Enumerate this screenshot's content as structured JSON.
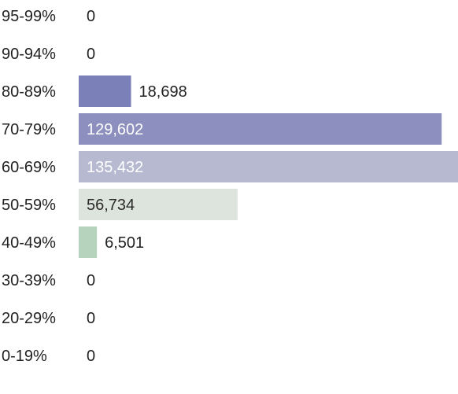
{
  "chart_data": {
    "type": "bar",
    "orientation": "horizontal",
    "categories": [
      "95-99%",
      "90-94%",
      "80-89%",
      "70-79%",
      "60-69%",
      "50-59%",
      "40-49%",
      "30-39%",
      "20-29%",
      "0-19%"
    ],
    "values": [
      0,
      0,
      18698,
      129602,
      135432,
      56734,
      6501,
      0,
      0,
      0
    ],
    "value_labels": [
      "0",
      "0",
      "18,698",
      "129,602",
      "135,432",
      "56,734",
      "6,501",
      "0",
      "0",
      "0"
    ],
    "bar_colors": [
      "#7b80b8",
      "#7b80b8",
      "#7b80b8",
      "#8d8fbe",
      "#b6b9d0",
      "#dde3dd",
      "#b6d3bd",
      "#b6d3bd",
      "#b6d3bd",
      "#b6d3bd"
    ],
    "label_inside_colors": [
      "#ffffff",
      "#ffffff",
      "#ffffff",
      "#ffffff",
      "#ffffff",
      "#2a2a2a",
      "#2a2a2a",
      "#2a2a2a",
      "#2a2a2a",
      "#2a2a2a"
    ],
    "label_outside_color": "#222222",
    "xlim": [
      0,
      135432
    ],
    "title": "",
    "xlabel": "",
    "ylabel": "",
    "grid": false,
    "legend": "none"
  }
}
